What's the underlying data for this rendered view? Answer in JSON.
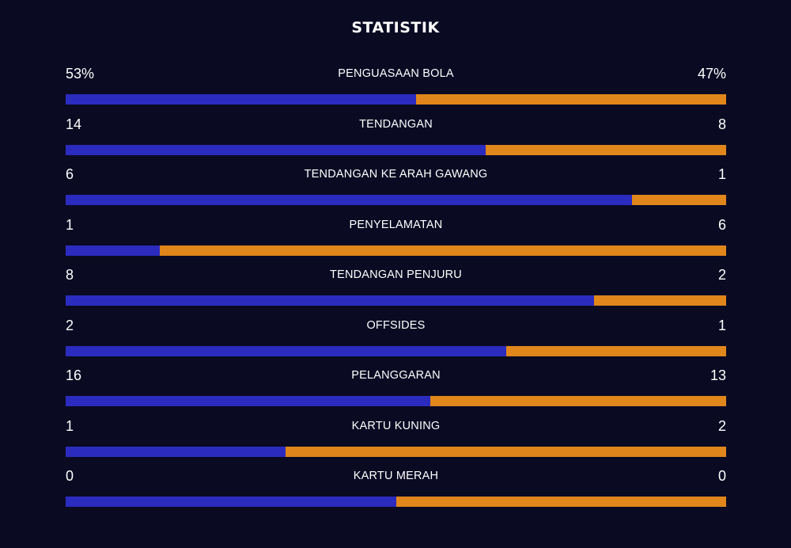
{
  "title": "STATISTIK",
  "colors": {
    "background": "#0a0a23",
    "home": "#2b2bbf",
    "away": "#e0861a"
  },
  "stats": [
    {
      "label": "PENGUASAAN BOLA",
      "home": "53%",
      "away": "47%",
      "home_share": 0.53
    },
    {
      "label": "TENDANGAN",
      "home": "14",
      "away": "8",
      "home_share": 0.636
    },
    {
      "label": "TENDANGAN KE ARAH GAWANG",
      "home": "6",
      "away": "1",
      "home_share": 0.857
    },
    {
      "label": "PENYELAMATAN",
      "home": "1",
      "away": "6",
      "home_share": 0.143
    },
    {
      "label": "TENDANGAN PENJURU",
      "home": "8",
      "away": "2",
      "home_share": 0.8
    },
    {
      "label": "OFFSIDES",
      "home": "2",
      "away": "1",
      "home_share": 0.667
    },
    {
      "label": "PELANGGARAN",
      "home": "16",
      "away": "13",
      "home_share": 0.552
    },
    {
      "label": "KARTU KUNING",
      "home": "1",
      "away": "2",
      "home_share": 0.333
    },
    {
      "label": "KARTU MERAH",
      "home": "0",
      "away": "0",
      "home_share": 0.5
    }
  ]
}
